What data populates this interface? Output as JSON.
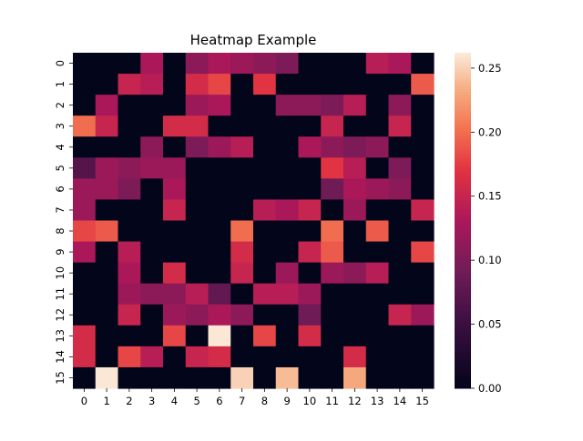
{
  "chart_data": {
    "type": "heatmap",
    "title": "Heatmap Example",
    "x_tick_labels": [
      "0",
      "1",
      "2",
      "3",
      "4",
      "5",
      "6",
      "7",
      "8",
      "9",
      "10",
      "11",
      "12",
      "13",
      "14",
      "15"
    ],
    "y_tick_labels": [
      "0",
      "1",
      "2",
      "3",
      "4",
      "5",
      "6",
      "7",
      "8",
      "9",
      "10",
      "11",
      "12",
      "13",
      "14",
      "15"
    ],
    "colorbar": {
      "min": 0.0,
      "max": 0.262,
      "tick_values": [
        0.0,
        0.05,
        0.1,
        0.15,
        0.2,
        0.25
      ],
      "tick_labels": [
        "0.00",
        "0.05",
        "0.10",
        "0.15",
        "0.20",
        "0.25"
      ]
    },
    "colormap": "rocket",
    "values": [
      [
        0,
        0,
        0,
        0.13,
        0,
        0.11,
        0.13,
        0.12,
        0.11,
        0.1,
        0,
        0,
        0,
        0.14,
        0.13,
        0
      ],
      [
        0,
        0,
        0.15,
        0.14,
        0,
        0.16,
        0.18,
        0,
        0.17,
        0,
        0,
        0,
        0,
        0,
        0,
        0.19
      ],
      [
        0,
        0.13,
        0,
        0,
        0,
        0.12,
        0.13,
        0,
        0,
        0.11,
        0.11,
        0.1,
        0.14,
        0,
        0.11,
        0
      ],
      [
        0.2,
        0.15,
        0,
        0,
        0.16,
        0.16,
        0,
        0,
        0,
        0,
        0,
        0.15,
        0,
        0,
        0.15,
        0
      ],
      [
        0,
        0,
        0,
        0.11,
        0,
        0.1,
        0.12,
        0.14,
        0,
        0,
        0.13,
        0.11,
        0.1,
        0.11,
        0,
        0
      ],
      [
        0.07,
        0.12,
        0.11,
        0.12,
        0.12,
        0,
        0,
        0,
        0,
        0,
        0,
        0.17,
        0.14,
        0,
        0.1,
        0
      ],
      [
        0.12,
        0.12,
        0.1,
        0,
        0.13,
        0,
        0,
        0,
        0,
        0,
        0,
        0.09,
        0.13,
        0.12,
        0.11,
        0
      ],
      [
        0.12,
        0,
        0,
        0,
        0.15,
        0,
        0,
        0,
        0.14,
        0.13,
        0.15,
        0,
        0.12,
        0,
        0,
        0.15
      ],
      [
        0.18,
        0.19,
        0,
        0,
        0,
        0,
        0,
        0.2,
        0,
        0,
        0,
        0.2,
        0,
        0.19,
        0,
        0
      ],
      [
        0.13,
        0,
        0.14,
        0,
        0,
        0,
        0,
        0.16,
        0,
        0,
        0.15,
        0.19,
        0,
        0,
        0,
        0.18
      ],
      [
        0,
        0,
        0.13,
        0,
        0.16,
        0,
        0,
        0.15,
        0,
        0.12,
        0,
        0.12,
        0.11,
        0.14,
        0,
        0
      ],
      [
        0,
        0,
        0.12,
        0.11,
        0.11,
        0.14,
        0.08,
        0,
        0.14,
        0.14,
        0.12,
        0,
        0,
        0,
        0,
        0
      ],
      [
        0,
        0,
        0.15,
        0,
        0.12,
        0.11,
        0.13,
        0.11,
        0,
        0,
        0.09,
        0,
        0,
        0,
        0.15,
        0.12
      ],
      [
        0.16,
        0,
        0,
        0,
        0.18,
        0,
        0.26,
        0,
        0.18,
        0,
        0.16,
        0,
        0,
        0,
        0,
        0
      ],
      [
        0.16,
        0,
        0.18,
        0.14,
        0,
        0.15,
        0.16,
        0,
        0,
        0,
        0,
        0,
        0.16,
        0,
        0,
        0
      ],
      [
        0,
        0.26,
        0,
        0,
        0,
        0,
        0,
        0.25,
        0,
        0.24,
        0,
        0,
        0.23,
        0,
        0,
        0
      ]
    ]
  }
}
